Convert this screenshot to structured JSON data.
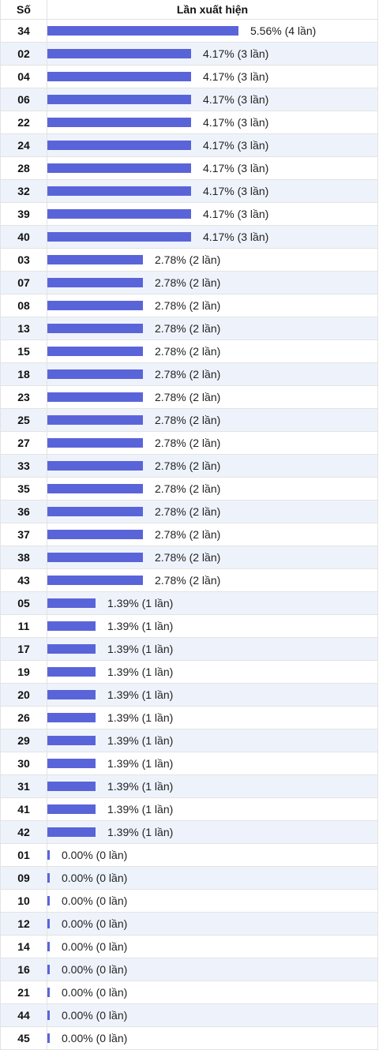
{
  "header": {
    "col_number": "Số",
    "col_freq": "Lần xuất hiện"
  },
  "colors": {
    "bar": "#5a64d9",
    "alt_row": "#eef3fb"
  },
  "chart_data": {
    "type": "bar",
    "orientation": "horizontal",
    "categories": [
      "34",
      "02",
      "04",
      "06",
      "22",
      "24",
      "28",
      "32",
      "39",
      "40",
      "03",
      "07",
      "08",
      "13",
      "15",
      "18",
      "23",
      "25",
      "27",
      "33",
      "35",
      "36",
      "37",
      "38",
      "43",
      "05",
      "11",
      "17",
      "19",
      "20",
      "26",
      "29",
      "30",
      "31",
      "41",
      "42",
      "01",
      "09",
      "10",
      "12",
      "14",
      "16",
      "21",
      "44",
      "45"
    ],
    "values": [
      4,
      3,
      3,
      3,
      3,
      3,
      3,
      3,
      3,
      3,
      2,
      2,
      2,
      2,
      2,
      2,
      2,
      2,
      2,
      2,
      2,
      2,
      2,
      2,
      2,
      1,
      1,
      1,
      1,
      1,
      1,
      1,
      1,
      1,
      1,
      1,
      0,
      0,
      0,
      0,
      0,
      0,
      0,
      0,
      0
    ],
    "labels": [
      "5.56% (4 lần)",
      "4.17% (3 lần)",
      "4.17% (3 lần)",
      "4.17% (3 lần)",
      "4.17% (3 lần)",
      "4.17% (3 lần)",
      "4.17% (3 lần)",
      "4.17% (3 lần)",
      "4.17% (3 lần)",
      "4.17% (3 lần)",
      "2.78% (2 lần)",
      "2.78% (2 lần)",
      "2.78% (2 lần)",
      "2.78% (2 lần)",
      "2.78% (2 lần)",
      "2.78% (2 lần)",
      "2.78% (2 lần)",
      "2.78% (2 lần)",
      "2.78% (2 lần)",
      "2.78% (2 lần)",
      "2.78% (2 lần)",
      "2.78% (2 lần)",
      "2.78% (2 lần)",
      "2.78% (2 lần)",
      "2.78% (2 lần)",
      "1.39% (1 lần)",
      "1.39% (1 lần)",
      "1.39% (1 lần)",
      "1.39% (1 lần)",
      "1.39% (1 lần)",
      "1.39% (1 lần)",
      "1.39% (1 lần)",
      "1.39% (1 lần)",
      "1.39% (1 lần)",
      "1.39% (1 lần)",
      "1.39% (1 lần)",
      "0.00% (0 lần)",
      "0.00% (0 lần)",
      "0.00% (0 lần)",
      "0.00% (0 lần)",
      "0.00% (0 lần)",
      "0.00% (0 lần)",
      "0.00% (0 lần)",
      "0.00% (0 lần)",
      "0.00% (0 lần)"
    ],
    "xlim": [
      0,
      4
    ]
  }
}
